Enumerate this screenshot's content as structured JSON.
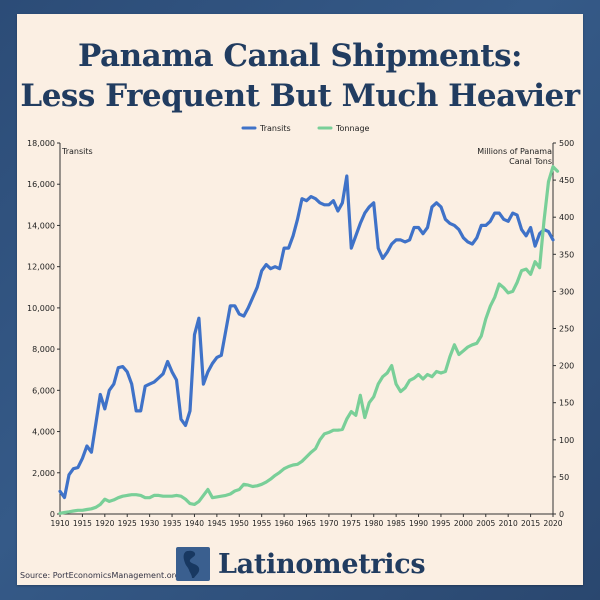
{
  "title_line1": "Panama Canal Shipments:",
  "title_line2": "Less Frequent But Much Heavier",
  "source": "Source: PortEconomicsManagement.org",
  "brand": "Latinometrics",
  "colors": {
    "transits": "#3f72c8",
    "tonnage": "#79cf98",
    "title": "#213c60"
  },
  "chart_data": {
    "type": "line",
    "title": "Panama Canal Shipments: Less Frequent But Much Heavier",
    "legend_position": "top-center",
    "grid": false,
    "x_ticks": [
      "1910",
      "1915",
      "1920",
      "1925",
      "1930",
      "1935",
      "1940",
      "1945",
      "1950",
      "1955",
      "1960",
      "1965",
      "1970",
      "1975",
      "1980",
      "1985",
      "1990",
      "1995",
      "2000",
      "2005",
      "2010",
      "2015",
      "2020"
    ],
    "x_range": [
      1910,
      2020
    ],
    "left_axis": {
      "label": "Transits",
      "range": [
        0,
        18000
      ],
      "ticks": [
        "0",
        "2,000",
        "4,000",
        "6,000",
        "8,000",
        "10,000",
        "12,000",
        "14,000",
        "16,000",
        "18,000"
      ]
    },
    "right_axis": {
      "label_line1": "Millions of Panama",
      "label_line2": "Canal Tons",
      "range": [
        0,
        500
      ],
      "ticks": [
        "0",
        "50",
        "100",
        "150",
        "200",
        "250",
        "300",
        "350",
        "400",
        "450",
        "500"
      ]
    },
    "series": [
      {
        "name": "Transits",
        "axis": "left",
        "color": "#3f72c8",
        "points": [
          [
            1910,
            1100
          ],
          [
            1911,
            800
          ],
          [
            1912,
            1900
          ],
          [
            1913,
            2200
          ],
          [
            1914,
            2250
          ],
          [
            1915,
            2700
          ],
          [
            1916,
            3300
          ],
          [
            1917,
            3000
          ],
          [
            1918,
            4400
          ],
          [
            1919,
            5800
          ],
          [
            1920,
            5100
          ],
          [
            1921,
            6000
          ],
          [
            1922,
            6300
          ],
          [
            1923,
            7100
          ],
          [
            1924,
            7150
          ],
          [
            1925,
            6900
          ],
          [
            1926,
            6300
          ],
          [
            1927,
            5000
          ],
          [
            1928,
            5000
          ],
          [
            1929,
            6200
          ],
          [
            1930,
            6300
          ],
          [
            1931,
            6400
          ],
          [
            1932,
            6600
          ],
          [
            1933,
            6800
          ],
          [
            1934,
            7400
          ],
          [
            1935,
            6900
          ],
          [
            1936,
            6500
          ],
          [
            1937,
            4600
          ],
          [
            1938,
            4300
          ],
          [
            1939,
            5000
          ],
          [
            1940,
            8700
          ],
          [
            1941,
            9500
          ],
          [
            1942,
            6300
          ],
          [
            1943,
            6900
          ],
          [
            1944,
            7300
          ],
          [
            1945,
            7600
          ],
          [
            1946,
            7700
          ],
          [
            1947,
            8900
          ],
          [
            1948,
            10100
          ],
          [
            1949,
            10100
          ],
          [
            1950,
            9700
          ],
          [
            1951,
            9600
          ],
          [
            1952,
            10000
          ],
          [
            1953,
            10500
          ],
          [
            1954,
            11000
          ],
          [
            1955,
            11800
          ],
          [
            1956,
            12100
          ],
          [
            1957,
            11900
          ],
          [
            1958,
            12000
          ],
          [
            1959,
            11900
          ],
          [
            1960,
            12900
          ],
          [
            1961,
            12900
          ],
          [
            1962,
            13500
          ],
          [
            1963,
            14300
          ],
          [
            1964,
            15300
          ],
          [
            1965,
            15200
          ],
          [
            1966,
            15400
          ],
          [
            1967,
            15300
          ],
          [
            1968,
            15100
          ],
          [
            1969,
            15000
          ],
          [
            1970,
            15000
          ],
          [
            1971,
            15200
          ],
          [
            1972,
            14700
          ],
          [
            1973,
            15100
          ],
          [
            1974,
            16400
          ],
          [
            1975,
            12900
          ],
          [
            1976,
            13500
          ],
          [
            1977,
            14100
          ],
          [
            1978,
            14600
          ],
          [
            1979,
            14900
          ],
          [
            1980,
            15100
          ],
          [
            1981,
            12900
          ],
          [
            1982,
            12400
          ],
          [
            1983,
            12700
          ],
          [
            1984,
            13100
          ],
          [
            1985,
            13300
          ],
          [
            1986,
            13300
          ],
          [
            1987,
            13200
          ],
          [
            1988,
            13300
          ],
          [
            1989,
            13900
          ],
          [
            1990,
            13900
          ],
          [
            1991,
            13600
          ],
          [
            1992,
            13900
          ],
          [
            1993,
            14900
          ],
          [
            1994,
            15100
          ],
          [
            1995,
            14900
          ],
          [
            1996,
            14300
          ],
          [
            1997,
            14100
          ],
          [
            1998,
            14000
          ],
          [
            1999,
            13800
          ],
          [
            2000,
            13400
          ],
          [
            2001,
            13200
          ],
          [
            2002,
            13100
          ],
          [
            2003,
            13400
          ],
          [
            2004,
            14000
          ],
          [
            2005,
            14000
          ],
          [
            2006,
            14200
          ],
          [
            2007,
            14600
          ],
          [
            2008,
            14600
          ],
          [
            2009,
            14300
          ],
          [
            2010,
            14200
          ],
          [
            2011,
            14600
          ],
          [
            2012,
            14500
          ],
          [
            2013,
            13800
          ],
          [
            2014,
            13500
          ],
          [
            2015,
            13900
          ],
          [
            2016,
            13000
          ],
          [
            2017,
            13600
          ],
          [
            2018,
            13800
          ],
          [
            2019,
            13700
          ],
          [
            2020,
            13300
          ]
        ]
      },
      {
        "name": "Tonnage",
        "axis": "right",
        "color": "#79cf98",
        "points": [
          [
            1910,
            1
          ],
          [
            1911,
            2
          ],
          [
            1912,
            3
          ],
          [
            1913,
            4
          ],
          [
            1914,
            5
          ],
          [
            1915,
            5
          ],
          [
            1916,
            6
          ],
          [
            1917,
            7
          ],
          [
            1918,
            9
          ],
          [
            1919,
            13
          ],
          [
            1920,
            20
          ],
          [
            1921,
            17
          ],
          [
            1922,
            19
          ],
          [
            1923,
            22
          ],
          [
            1924,
            24
          ],
          [
            1925,
            25
          ],
          [
            1926,
            26
          ],
          [
            1927,
            26
          ],
          [
            1928,
            25
          ],
          [
            1929,
            22
          ],
          [
            1930,
            22
          ],
          [
            1931,
            25
          ],
          [
            1932,
            25
          ],
          [
            1933,
            24
          ],
          [
            1934,
            24
          ],
          [
            1935,
            24
          ],
          [
            1936,
            25
          ],
          [
            1937,
            24
          ],
          [
            1938,
            20
          ],
          [
            1939,
            14
          ],
          [
            1940,
            13
          ],
          [
            1941,
            17
          ],
          [
            1942,
            25
          ],
          [
            1943,
            33
          ],
          [
            1944,
            22
          ],
          [
            1945,
            23
          ],
          [
            1946,
            24
          ],
          [
            1947,
            25
          ],
          [
            1948,
            27
          ],
          [
            1949,
            31
          ],
          [
            1950,
            33
          ],
          [
            1951,
            40
          ],
          [
            1952,
            39
          ],
          [
            1953,
            37
          ],
          [
            1954,
            38
          ],
          [
            1955,
            40
          ],
          [
            1956,
            43
          ],
          [
            1957,
            47
          ],
          [
            1958,
            52
          ],
          [
            1959,
            56
          ],
          [
            1960,
            61
          ],
          [
            1961,
            64
          ],
          [
            1962,
            66
          ],
          [
            1963,
            67
          ],
          [
            1964,
            71
          ],
          [
            1965,
            77
          ],
          [
            1966,
            83
          ],
          [
            1967,
            88
          ],
          [
            1968,
            100
          ],
          [
            1969,
            108
          ],
          [
            1970,
            110
          ],
          [
            1971,
            113
          ],
          [
            1972,
            113
          ],
          [
            1973,
            114
          ],
          [
            1974,
            128
          ],
          [
            1975,
            138
          ],
          [
            1976,
            133
          ],
          [
            1977,
            160
          ],
          [
            1978,
            130
          ],
          [
            1979,
            150
          ],
          [
            1980,
            158
          ],
          [
            1981,
            175
          ],
          [
            1982,
            185
          ],
          [
            1983,
            190
          ],
          [
            1984,
            200
          ],
          [
            1985,
            175
          ],
          [
            1986,
            165
          ],
          [
            1987,
            170
          ],
          [
            1988,
            180
          ],
          [
            1989,
            183
          ],
          [
            1990,
            188
          ],
          [
            1991,
            182
          ],
          [
            1992,
            188
          ],
          [
            1993,
            185
          ],
          [
            1994,
            192
          ],
          [
            1995,
            190
          ],
          [
            1996,
            192
          ],
          [
            1997,
            212
          ],
          [
            1998,
            228
          ],
          [
            1999,
            215
          ],
          [
            2000,
            220
          ],
          [
            2001,
            225
          ],
          [
            2002,
            228
          ],
          [
            2003,
            230
          ],
          [
            2004,
            240
          ],
          [
            2005,
            263
          ],
          [
            2006,
            280
          ],
          [
            2007,
            292
          ],
          [
            2008,
            310
          ],
          [
            2009,
            305
          ],
          [
            2010,
            298
          ],
          [
            2011,
            300
          ],
          [
            2012,
            312
          ],
          [
            2013,
            328
          ],
          [
            2014,
            330
          ],
          [
            2015,
            323
          ],
          [
            2016,
            340
          ],
          [
            2017,
            332
          ],
          [
            2018,
            395
          ],
          [
            2019,
            448
          ],
          [
            2020,
            468
          ],
          [
            2021,
            462
          ]
        ]
      }
    ]
  }
}
